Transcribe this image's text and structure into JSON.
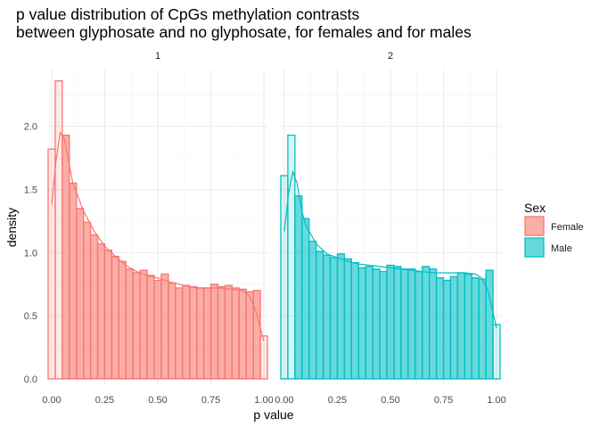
{
  "title_line1": "p value distribution of CpGs methylation contrasts",
  "title_line2": "between glyphosate and no glyphosate, for females and for males",
  "chart_data": {
    "type": "histogram+density",
    "xlabel": "p value",
    "ylabel": "density",
    "xlim": [
      -0.025,
      1.025
    ],
    "ylim": [
      -0.05,
      2.45
    ],
    "x_ticks": [
      0.0,
      0.25,
      0.5,
      0.75,
      1.0
    ],
    "x_tick_labels": [
      "0.00",
      "0.25",
      "0.50",
      "0.75",
      "1.00"
    ],
    "y_ticks": [
      0.0,
      0.5,
      1.0,
      1.5,
      2.0
    ],
    "y_tick_labels": [
      "0.0",
      "0.5",
      "1.0",
      "1.5",
      "2.0"
    ],
    "grid": true,
    "legend": {
      "title": "Sex",
      "position": "right",
      "entries": [
        {
          "label": "Female",
          "fill": "#F8766D",
          "outline": "#F8766D"
        },
        {
          "label": "Male",
          "fill": "#00BFC4",
          "outline": "#00BFC4"
        }
      ]
    },
    "bin_centers": [
      0.0,
      0.0333,
      0.0667,
      0.1,
      0.1333,
      0.1667,
      0.2,
      0.2333,
      0.2667,
      0.3,
      0.3333,
      0.3667,
      0.4,
      0.4333,
      0.4667,
      0.5,
      0.5333,
      0.5667,
      0.6,
      0.6333,
      0.6667,
      0.7,
      0.7333,
      0.7667,
      0.8,
      0.8333,
      0.8667,
      0.9,
      0.9333,
      0.9667,
      1.0
    ],
    "panels": [
      {
        "strip": "1",
        "series": "Female",
        "color": "#F8766D",
        "hist": [
          1.82,
          2.36,
          1.93,
          1.55,
          1.35,
          1.24,
          1.14,
          1.07,
          1.02,
          0.97,
          0.93,
          0.87,
          0.84,
          0.86,
          0.82,
          0.78,
          0.83,
          0.76,
          0.72,
          0.74,
          0.73,
          0.72,
          0.72,
          0.75,
          0.73,
          0.74,
          0.72,
          0.71,
          0.69,
          0.7,
          0.34
        ],
        "density_x": [
          0.0,
          0.02,
          0.04,
          0.06,
          0.08,
          0.1,
          0.15,
          0.2,
          0.25,
          0.3,
          0.35,
          0.4,
          0.45,
          0.5,
          0.55,
          0.6,
          0.65,
          0.7,
          0.75,
          0.8,
          0.85,
          0.9,
          0.93,
          0.96,
          1.0
        ],
        "density_y": [
          1.38,
          1.72,
          1.95,
          1.9,
          1.72,
          1.55,
          1.33,
          1.17,
          1.05,
          0.97,
          0.9,
          0.85,
          0.82,
          0.8,
          0.77,
          0.75,
          0.73,
          0.72,
          0.72,
          0.72,
          0.71,
          0.7,
          0.66,
          0.55,
          0.3
        ]
      },
      {
        "strip": "2",
        "series": "Male",
        "color": "#00BFC4",
        "hist": [
          1.61,
          1.93,
          1.45,
          1.27,
          1.09,
          1.01,
          0.98,
          0.96,
          0.99,
          0.95,
          0.92,
          0.88,
          0.89,
          0.87,
          0.85,
          0.9,
          0.89,
          0.87,
          0.87,
          0.85,
          0.89,
          0.87,
          0.8,
          0.78,
          0.81,
          0.84,
          0.83,
          0.8,
          0.79,
          0.86,
          0.43
        ],
        "density_x": [
          0.0,
          0.02,
          0.04,
          0.06,
          0.08,
          0.1,
          0.15,
          0.2,
          0.25,
          0.3,
          0.35,
          0.4,
          0.45,
          0.5,
          0.55,
          0.6,
          0.65,
          0.7,
          0.75,
          0.8,
          0.85,
          0.9,
          0.93,
          0.96,
          1.0
        ],
        "density_y": [
          1.17,
          1.47,
          1.64,
          1.55,
          1.35,
          1.22,
          1.07,
          0.99,
          0.96,
          0.93,
          0.91,
          0.9,
          0.89,
          0.88,
          0.87,
          0.86,
          0.85,
          0.84,
          0.84,
          0.84,
          0.84,
          0.83,
          0.8,
          0.7,
          0.4
        ]
      }
    ]
  }
}
